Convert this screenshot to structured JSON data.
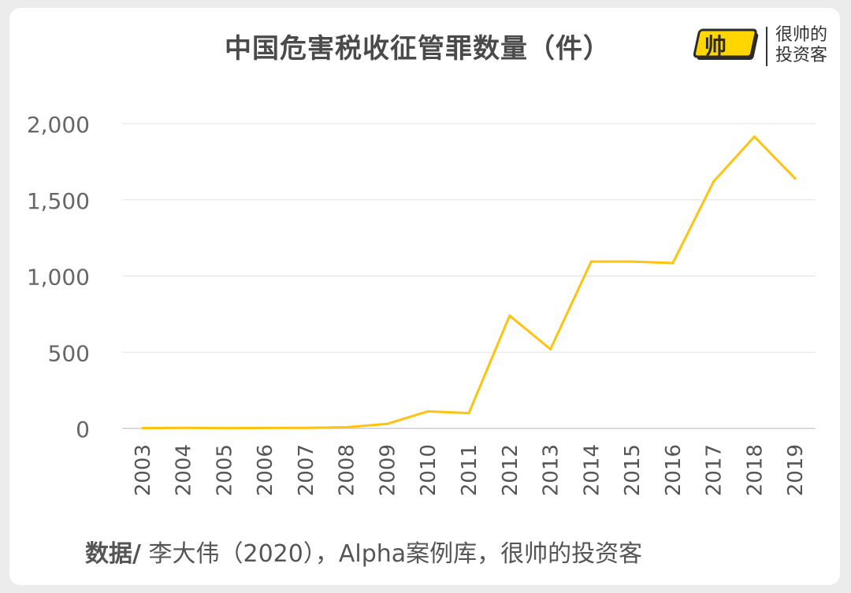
{
  "header": {
    "title": "中国危害税收征管罪数量（件）"
  },
  "brand": {
    "logo_glyph": "帅",
    "name_line1": "很帅的",
    "name_line2": "投资客",
    "accent": "#ffd600"
  },
  "footer": {
    "source_label": "数据/",
    "source_text": " 李大伟（2020），Alpha案例库，很帅的投资客"
  },
  "chart_data": {
    "type": "line",
    "title": "中国危害税收征管罪数量（件）",
    "xlabel": "",
    "ylabel": "",
    "categories": [
      "2003",
      "2004",
      "2005",
      "2006",
      "2007",
      "2008",
      "2009",
      "2010",
      "2011",
      "2012",
      "2013",
      "2014",
      "2015",
      "2016",
      "2017",
      "2018",
      "2019"
    ],
    "series": [
      {
        "values": [
          2,
          4,
          2,
          3,
          4,
          8,
          30,
          112,
          100,
          740,
          520,
          1095,
          1095,
          1085,
          1620,
          1915,
          1640
        ],
        "color": "#ffc20e"
      }
    ],
    "ylim": [
      0,
      2000
    ],
    "yticks": [
      0,
      500,
      1000,
      1500,
      2000
    ],
    "ytick_labels": [
      "0",
      "500",
      "1,000",
      "1,500",
      "2,000"
    ],
    "grid": true,
    "legend": "none"
  }
}
